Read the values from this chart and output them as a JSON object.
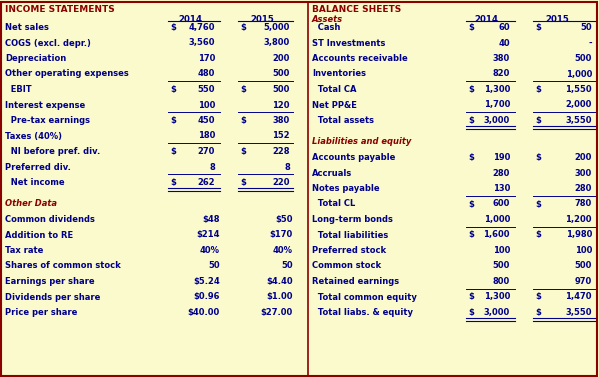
{
  "bg_color": "#FAFACD",
  "title_color": "#8B0000",
  "value_color": "#00008B",
  "italic_color": "#8B0000",
  "border_color": "#8B0000",
  "divider_color": "#00008B",
  "income_title": "INCOME STATEMENTS",
  "balance_title": "BALANCE SHEETS",
  "years": [
    "2014",
    "2015"
  ],
  "income_rows": [
    {
      "label": "Net sales",
      "dollar14": true,
      "v14": "4,760",
      "dollar15": true,
      "v15": "5,000",
      "line_below": false,
      "double_below": false
    },
    {
      "label": "COGS (excl. depr.)",
      "dollar14": false,
      "v14": "3,560",
      "dollar15": false,
      "v15": "3,800",
      "line_below": false,
      "double_below": false
    },
    {
      "label": "Depreciation",
      "dollar14": false,
      "v14": "170",
      "dollar15": false,
      "v15": "200",
      "line_below": false,
      "double_below": false
    },
    {
      "label": "Other operating expenses",
      "dollar14": false,
      "v14": "480",
      "dollar15": false,
      "v15": "500",
      "line_below": true,
      "double_below": false
    },
    {
      "label": "  EBIT",
      "dollar14": true,
      "v14": "550",
      "dollar15": true,
      "v15": "500",
      "line_below": false,
      "double_below": false
    },
    {
      "label": "Interest expense",
      "dollar14": false,
      "v14": "100",
      "dollar15": false,
      "v15": "120",
      "line_below": true,
      "double_below": false
    },
    {
      "label": "  Pre-tax earnings",
      "dollar14": true,
      "v14": "450",
      "dollar15": true,
      "v15": "380",
      "line_below": false,
      "double_below": false
    },
    {
      "label": "Taxes (40%)",
      "dollar14": false,
      "v14": "180",
      "dollar15": false,
      "v15": "152",
      "line_below": true,
      "double_below": false
    },
    {
      "label": "  NI before pref. div.",
      "dollar14": true,
      "v14": "270",
      "dollar15": true,
      "v15": "228",
      "line_below": false,
      "double_below": false
    },
    {
      "label": "Preferred div.",
      "dollar14": false,
      "v14": "8",
      "dollar15": false,
      "v15": "8",
      "line_below": true,
      "double_below": false
    },
    {
      "label": "  Net income",
      "dollar14": true,
      "v14": "262",
      "dollar15": true,
      "v15": "220",
      "line_below": false,
      "double_below": true
    }
  ],
  "other_data_title": "Other Data",
  "other_rows": [
    {
      "label": "Common dividends",
      "v14": "$48",
      "v15": "$50"
    },
    {
      "label": "Addition to RE",
      "v14": "$214",
      "v15": "$170"
    },
    {
      "label": "Tax rate",
      "v14": "40%",
      "v15": "40%"
    },
    {
      "label": "Shares of common stock",
      "v14": "50",
      "v15": "50"
    },
    {
      "label": "Earnings per share",
      "v14": "$5.24",
      "v15": "$4.40"
    },
    {
      "label": "Dividends per share",
      "v14": "$0.96",
      "v15": "$1.00"
    },
    {
      "label": "Price per share",
      "v14": "$40.00",
      "v15": "$27.00"
    }
  ],
  "assets_title": "Assets",
  "asset_rows": [
    {
      "label": "  Cash",
      "dollar14": true,
      "v14": "60",
      "dollar15": true,
      "v15": "50",
      "line_below": false,
      "double_below": false
    },
    {
      "label": "ST Investments",
      "dollar14": false,
      "v14": "40",
      "dollar15": false,
      "v15": "-",
      "line_below": false,
      "double_below": false
    },
    {
      "label": "Accounts receivable",
      "dollar14": false,
      "v14": "380",
      "dollar15": false,
      "v15": "500",
      "line_below": false,
      "double_below": false
    },
    {
      "label": "Inventories",
      "dollar14": false,
      "v14": "820",
      "dollar15": false,
      "v15": "1,000",
      "line_below": true,
      "double_below": false
    },
    {
      "label": "  Total CA",
      "dollar14": true,
      "v14": "1,300",
      "dollar15": true,
      "v15": "1,550",
      "line_below": false,
      "double_below": false
    },
    {
      "label": "Net PP&E",
      "dollar14": false,
      "v14": "1,700",
      "dollar15": false,
      "v15": "2,000",
      "line_below": true,
      "double_below": false
    },
    {
      "label": "  Total assets",
      "dollar14": true,
      "v14": "3,000",
      "dollar15": true,
      "v15": "3,550",
      "line_below": false,
      "double_below": true
    }
  ],
  "liab_title": "Liabilities and equity",
  "liab_rows": [
    {
      "label": "Accounts payable",
      "dollar14": true,
      "v14": "190",
      "dollar15": true,
      "v15": "200",
      "line_below": false,
      "double_below": false
    },
    {
      "label": "Accruals",
      "dollar14": false,
      "v14": "280",
      "dollar15": false,
      "v15": "300",
      "line_below": false,
      "double_below": false
    },
    {
      "label": "Notes payable",
      "dollar14": false,
      "v14": "130",
      "dollar15": false,
      "v15": "280",
      "line_below": true,
      "double_below": false
    },
    {
      "label": "  Total CL",
      "dollar14": true,
      "v14": "600",
      "dollar15": true,
      "v15": "780",
      "line_below": false,
      "double_below": false
    },
    {
      "label": "Long-term bonds",
      "dollar14": false,
      "v14": "1,000",
      "dollar15": false,
      "v15": "1,200",
      "line_below": true,
      "double_below": false
    },
    {
      "label": "  Total liabilities",
      "dollar14": true,
      "v14": "1,600",
      "dollar15": true,
      "v15": "1,980",
      "line_below": false,
      "double_below": false
    },
    {
      "label": "Preferred stock",
      "dollar14": false,
      "v14": "100",
      "dollar15": false,
      "v15": "100",
      "line_below": false,
      "double_below": false
    },
    {
      "label": "Common stock",
      "dollar14": false,
      "v14": "500",
      "dollar15": false,
      "v15": "500",
      "line_below": false,
      "double_below": false
    },
    {
      "label": "Retained earnings",
      "dollar14": false,
      "v14": "800",
      "dollar15": false,
      "v15": "970",
      "line_below": true,
      "double_below": false
    },
    {
      "label": "  Total common equity",
      "dollar14": true,
      "v14": "1,300",
      "dollar15": true,
      "v15": "1,470",
      "line_below": false,
      "double_below": false
    },
    {
      "label": "  Total liabs. & equity",
      "dollar14": true,
      "v14": "3,000",
      "dollar15": true,
      "v15": "3,550",
      "line_below": false,
      "double_below": true
    }
  ]
}
